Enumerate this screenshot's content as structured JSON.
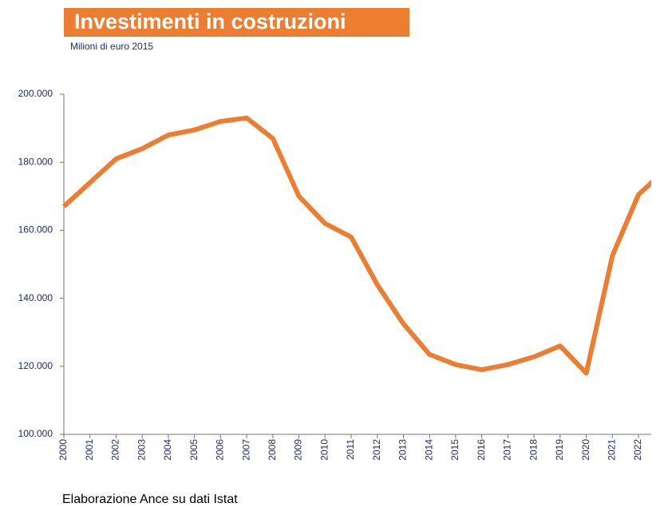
{
  "chart_data": {
    "type": "line",
    "title": "Investimenti in costruzioni",
    "subtitle": "Milioni di euro 2015",
    "source": "Elaborazione Ance su dati Istat",
    "categories": [
      "2000",
      "2001",
      "2002",
      "2003",
      "2004",
      "2005",
      "2006",
      "2007",
      "2008",
      "2009",
      "2010",
      "2011",
      "2012",
      "2013",
      "2014",
      "2015",
      "2016",
      "2017",
      "2018",
      "2019",
      "2020",
      "2021",
      "2022",
      null
    ],
    "series": [
      {
        "name": "Investimenti",
        "color": "#ed7d31",
        "values": [
          167000,
          174000,
          181000,
          184000,
          188000,
          189500,
          192000,
          193000,
          187000,
          170000,
          162000,
          158000,
          144000,
          132500,
          123500,
          120500,
          119000,
          120500,
          122800,
          126000,
          118000,
          152500,
          170500,
          177500
        ]
      }
    ],
    "ylim": [
      100000,
      200000
    ],
    "yticks": [
      {
        "value": 100000,
        "label": "100.000"
      },
      {
        "value": 120000,
        "label": "120.000"
      },
      {
        "value": 140000,
        "label": "140.000"
      },
      {
        "value": 160000,
        "label": "160.000"
      },
      {
        "value": 180000,
        "label": "180.000"
      },
      {
        "value": 200000,
        "label": "200.000"
      }
    ],
    "grid": false
  }
}
